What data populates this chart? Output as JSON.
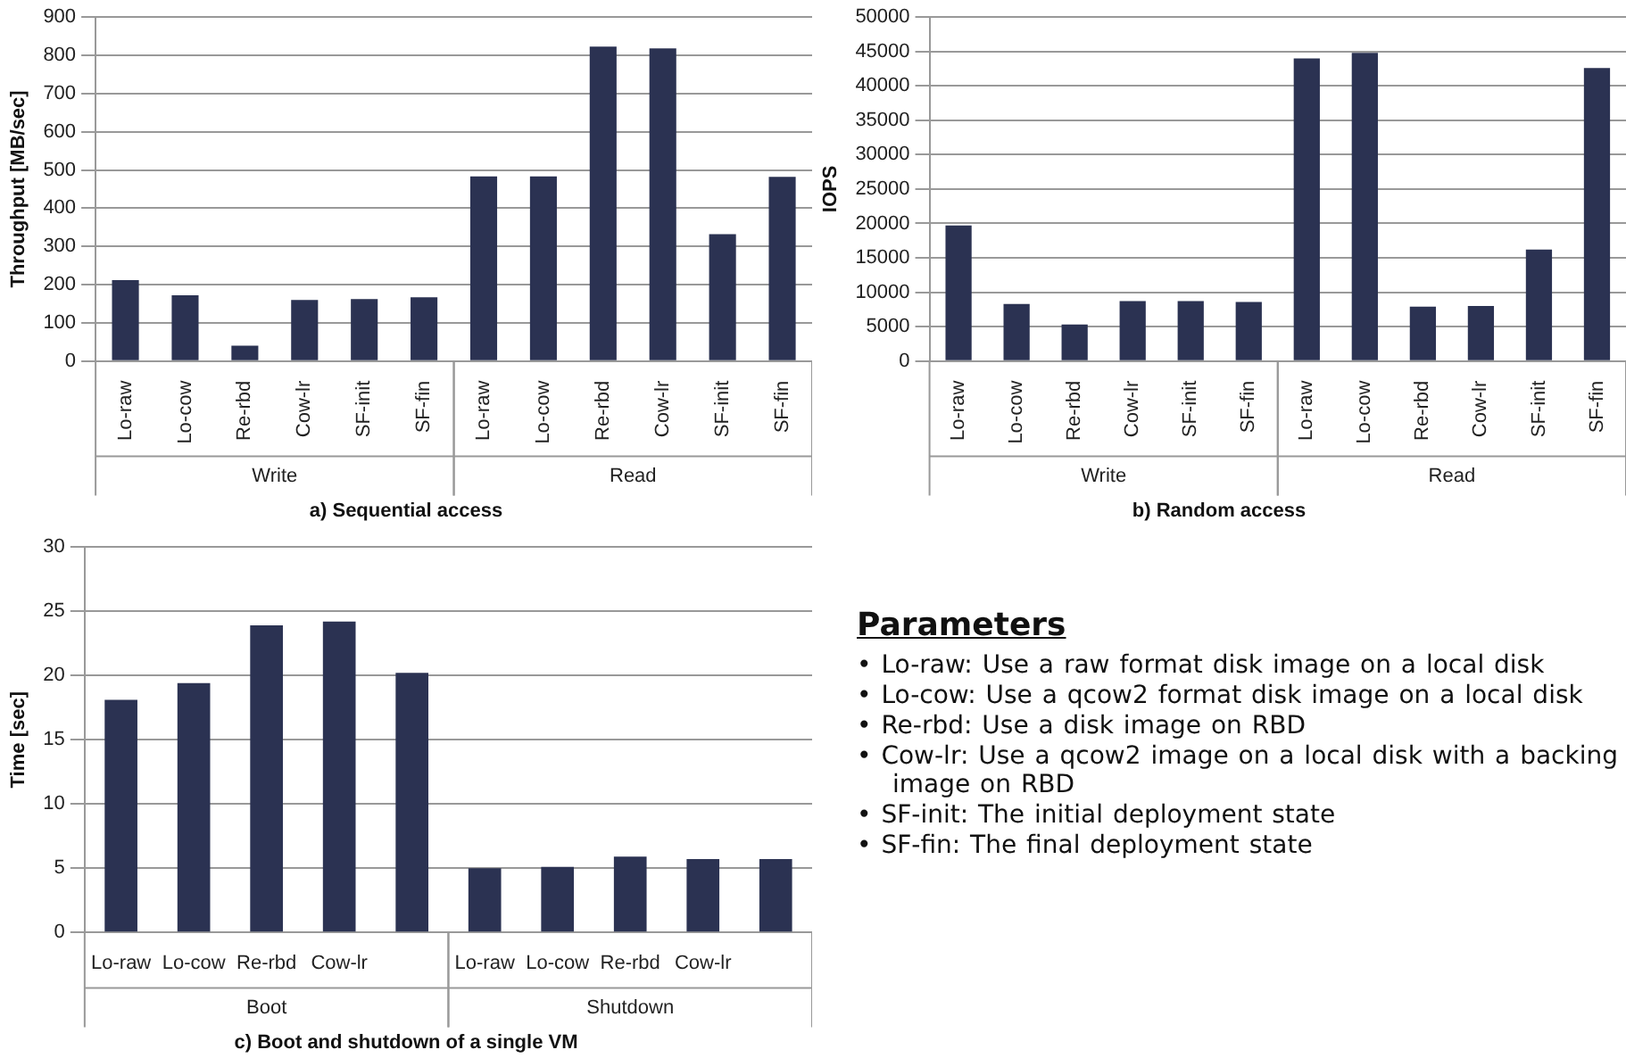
{
  "chart_data": [
    {
      "type": "bar",
      "title": "a) Sequential access",
      "ylabel": "Throughput [MB/sec]",
      "categories": [
        "Lo-raw",
        "Lo-cow",
        "Re-rbd",
        "Cow-lr",
        "SF-init",
        "SF-fin",
        "Lo-raw",
        "Lo-cow",
        "Re-rbd",
        "Cow-lr",
        "SF-init",
        "SF-fin"
      ],
      "values": [
        212,
        172,
        40,
        160,
        162,
        167,
        483,
        483,
        823,
        818,
        332,
        482
      ],
      "color": "#2b3252",
      "ylim": [
        0,
        900
      ],
      "yticks": [
        0,
        100,
        200,
        300,
        400,
        500,
        600,
        700,
        800,
        900
      ],
      "grid": "y",
      "annotations": [
        "Write",
        "Read"
      ]
    },
    {
      "type": "bar",
      "title": "b) Random access",
      "ylabel": "IOPS",
      "categories": [
        "Lo-raw",
        "Lo-cow",
        "Re-rbd",
        "Cow-lr",
        "SF-init",
        "SF-fin",
        "Lo-raw",
        "Lo-cow",
        "Re-rbd",
        "Cow-lr",
        "SF-init",
        "SF-fin"
      ],
      "values": [
        19700,
        8300,
        5300,
        8700,
        8700,
        8600,
        44000,
        44800,
        7900,
        8000,
        16200,
        42600
      ],
      "color": "#2b3252",
      "ylim": [
        0,
        50000
      ],
      "yticks": [
        0,
        5000,
        10000,
        15000,
        20000,
        25000,
        30000,
        35000,
        40000,
        45000,
        50000
      ],
      "grid": "y",
      "annotations": [
        "Write",
        "Read"
      ]
    },
    {
      "type": "bar",
      "title": "c) Boot and shutdown of a single VM",
      "ylabel": "Time [sec]",
      "categories": [
        "Lo-raw",
        "Lo-cow",
        "Re-rbd",
        "Cow-lr",
        null,
        "Lo-raw",
        "Lo-cow",
        "Re-rbd",
        "Cow-lr",
        null
      ],
      "values": [
        18.1,
        19.4,
        23.9,
        24.2,
        20.2,
        5.0,
        5.1,
        5.9,
        5.7,
        5.7
      ],
      "color": "#2b3252",
      "ylim": [
        0,
        30
      ],
      "yticks": [
        0,
        5,
        10,
        15,
        20,
        25,
        30
      ],
      "grid": "y",
      "annotations": [
        "Boot",
        "Shutdown"
      ]
    },
    {
      "type": "other",
      "title": "Parameters",
      "annotations": [
        "• Lo-raw: Use a raw format disk image on a local disk",
        "• Lo-cow: Use a qcow2 format disk image on a local disk",
        "• Re-rbd: Use a disk image on RBD",
        "• Cow-lr: Use a qcow2 image on a local disk with a backing image on RBD",
        "• SF-init: The initial deployment state",
        "• SF-fin: The final deployment state"
      ]
    }
  ]
}
